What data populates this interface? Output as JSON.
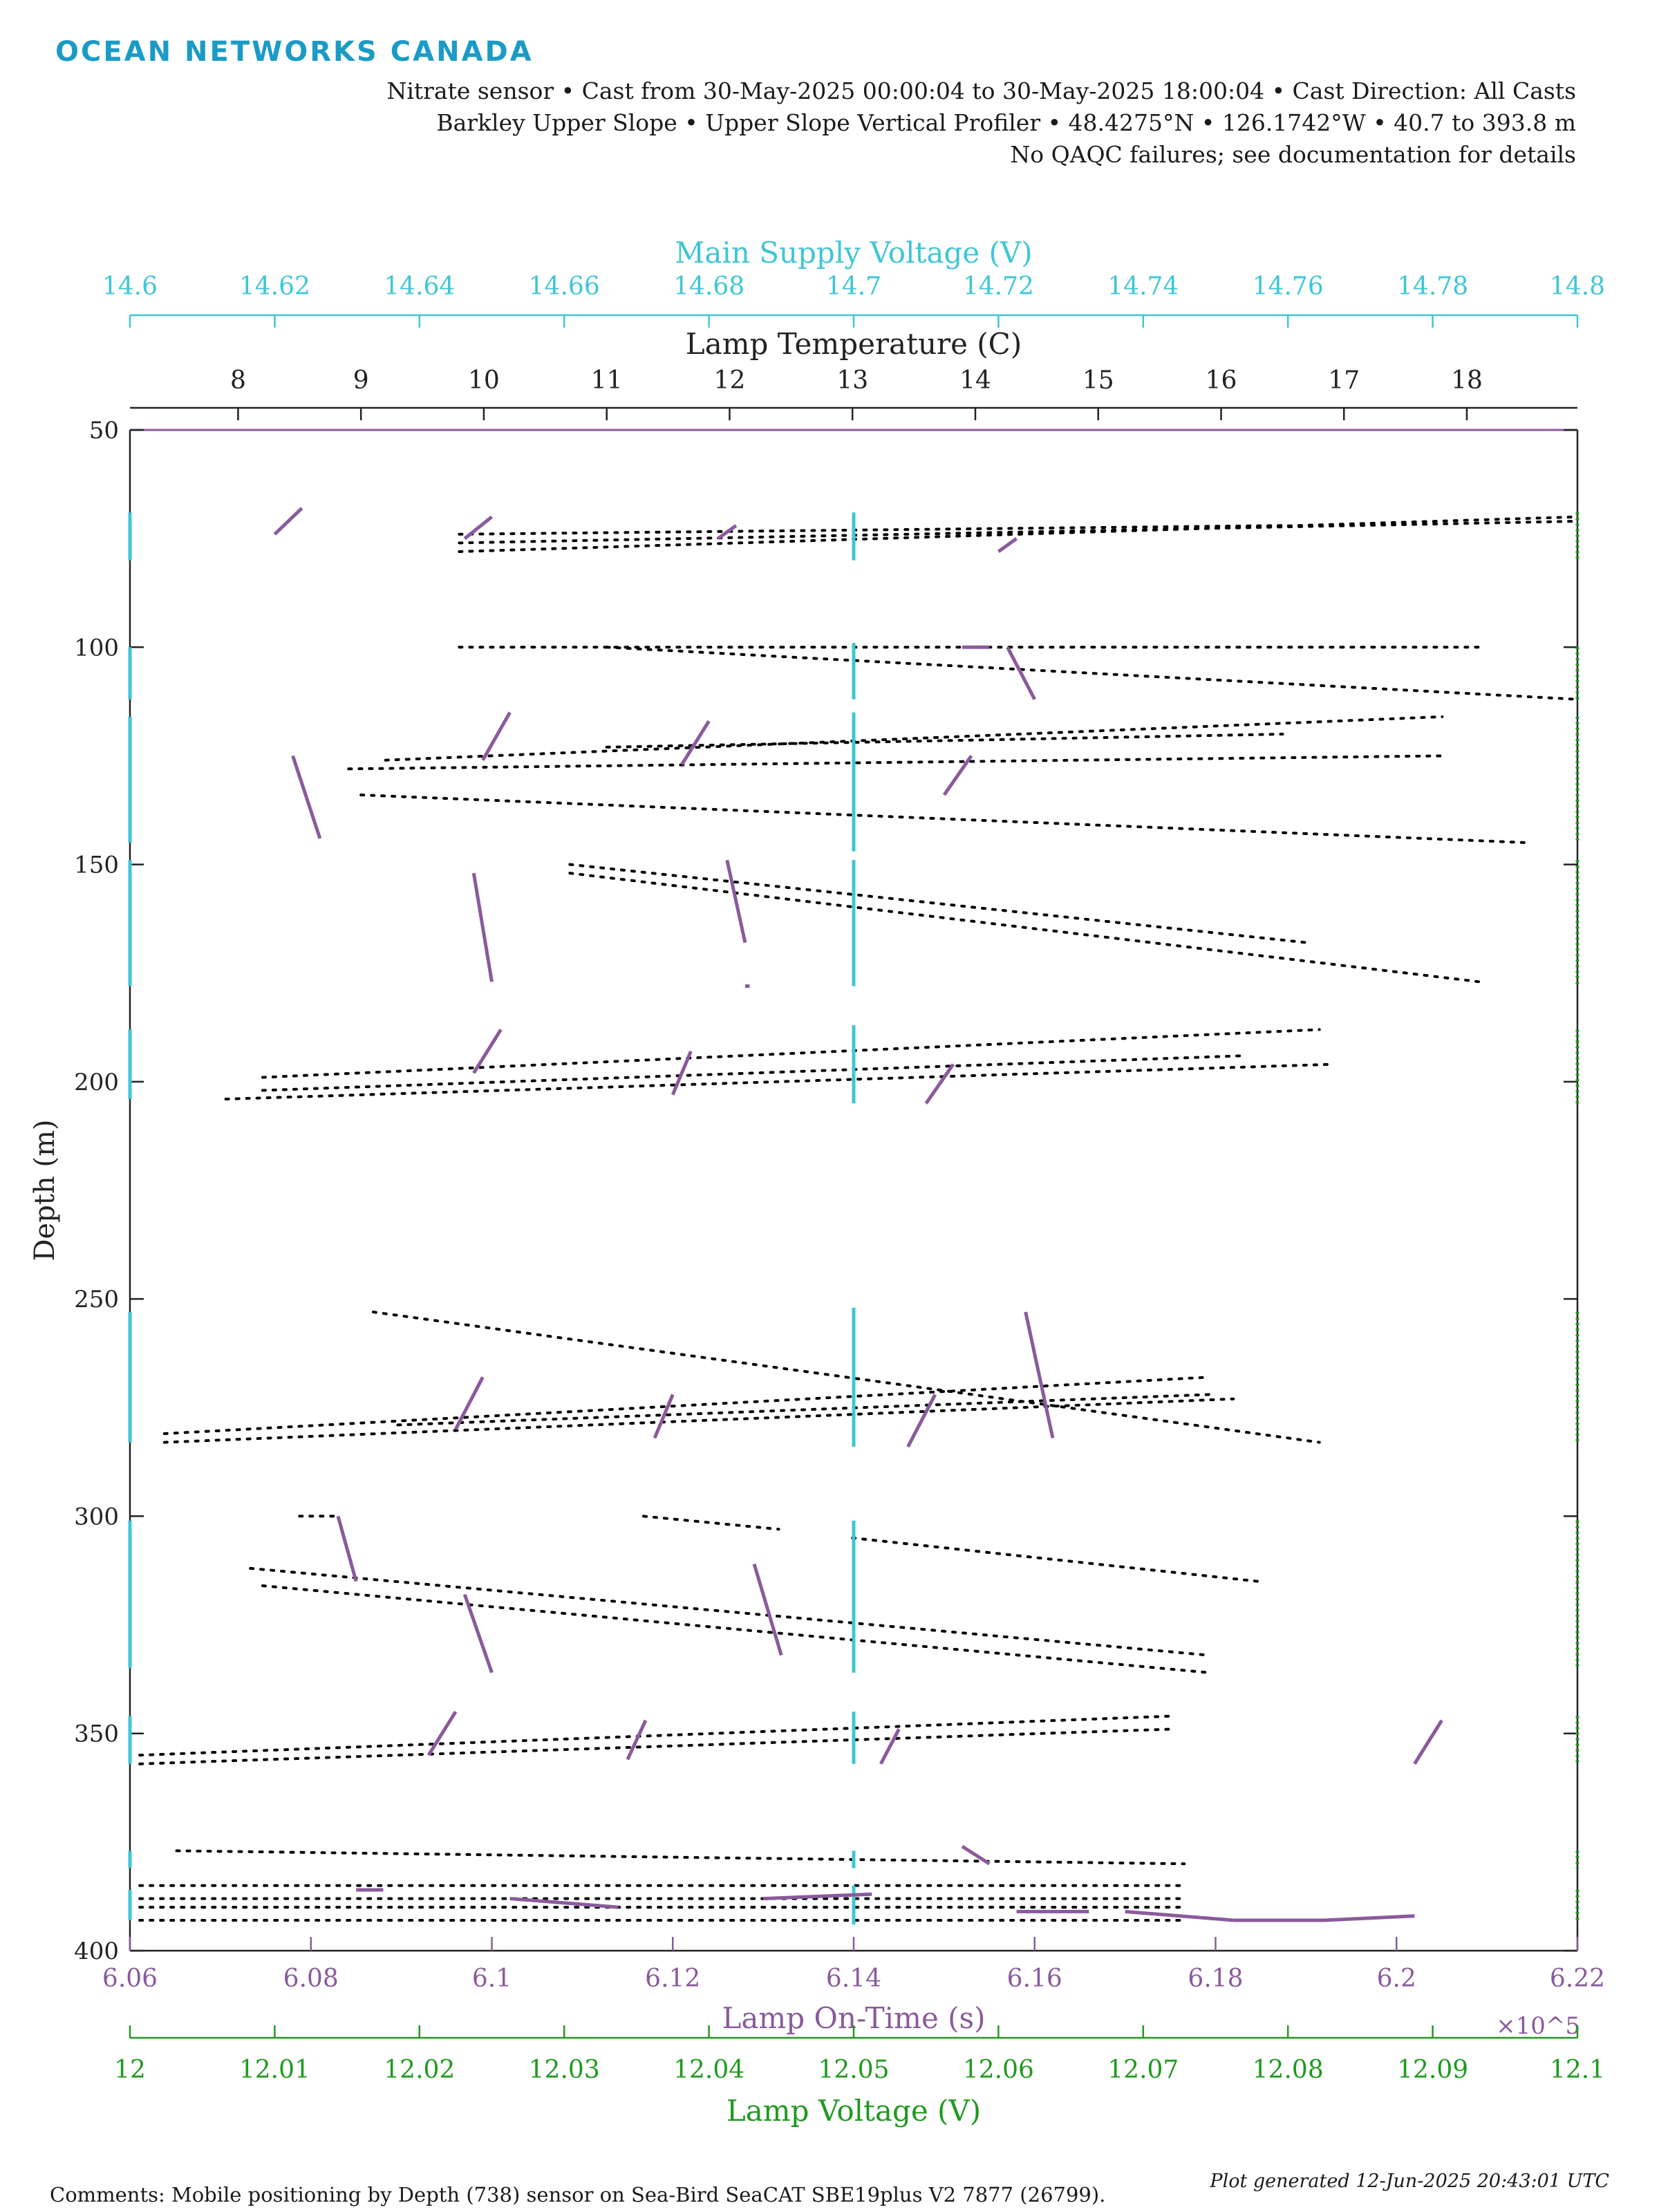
{
  "brand": "OCEAN NETWORKS CANADA",
  "header": {
    "line1": "Nitrate sensor • Cast from 30-May-2025 00:00:04 to 30-May-2025 18:00:04 • Cast Direction: All Casts",
    "line2": "Barkley Upper Slope • Upper Slope Vertical Profiler • 48.4275°N • 126.1742°W • 40.7 to 393.8 m",
    "line3": "No QAQC failures; see documentation for details"
  },
  "footer": {
    "comments": "Comments: Mobile positioning by Depth (738) sensor on Sea-Bird SeaCAT SBE19plus V2 7877 (26799).",
    "generated": "Plot generated 12-Jun-2025 20:43:01 UTC"
  },
  "colors": {
    "lamp_temperature": "#000000",
    "main_supply_voltage": "#3ec6d6",
    "lamp_on_time": "#8a5a9c",
    "lamp_voltage": "#1e9a1e"
  },
  "chart_data": {
    "type": "scatter",
    "y_axis": {
      "label": "Depth (m)",
      "range": [
        50,
        400
      ],
      "reversed": true,
      "ticks": [
        "50",
        "100",
        "150",
        "200",
        "250",
        "300",
        "350",
        "400"
      ]
    },
    "x_axes": [
      {
        "key": "voltage",
        "label": "Main Supply Voltage (V)",
        "position": "top",
        "range": [
          14.6,
          14.8
        ],
        "ticks": [
          "14.6",
          "14.62",
          "14.64",
          "14.66",
          "14.68",
          "14.7",
          "14.72",
          "14.74",
          "14.76",
          "14.78",
          "14.8"
        ]
      },
      {
        "key": "temp",
        "label": "Lamp Temperature (C)",
        "position": "top",
        "range": [
          7.12,
          18.9
        ],
        "ticks": [
          "8",
          "9",
          "10",
          "11",
          "12",
          "13",
          "14",
          "15",
          "16",
          "17",
          "18"
        ]
      },
      {
        "key": "ontime",
        "label": "Lamp On-Time (s)",
        "position": "bottom",
        "range": [
          606000,
          622000
        ],
        "ticks": [
          "6.06",
          "6.08",
          "6.1",
          "6.12",
          "6.14",
          "6.16",
          "6.18",
          "6.2",
          "6.22"
        ],
        "exponent": "×10^5"
      },
      {
        "key": "lampv",
        "label": "Lamp Voltage (V)",
        "position": "bottom",
        "range": [
          12,
          12.1
        ],
        "ticks": [
          "12",
          "12.01",
          "12.02",
          "12.03",
          "12.04",
          "12.05",
          "12.06",
          "12.07",
          "12.08",
          "12.09",
          "12.1"
        ]
      }
    ],
    "grid": false,
    "series": [
      {
        "name": "Lamp Temperature (C)",
        "axis": "temp",
        "mark": "dotted-segments",
        "segments": [
          [
            [
              9.8,
              78
            ],
            [
              18.9,
              70
            ]
          ],
          [
            [
              9.8,
              76
            ],
            [
              18.9,
              71
            ]
          ],
          [
            [
              9.8,
              74
            ],
            [
              16.5,
              72
            ]
          ],
          [
            [
              9.8,
              100
            ],
            [
              18.1,
              100
            ]
          ],
          [
            [
              11,
              100
            ],
            [
              18.9,
              112
            ]
          ],
          [
            [
              9.2,
              126
            ],
            [
              17.8,
              116
            ]
          ],
          [
            [
              9,
              134
            ],
            [
              18.5,
              145
            ]
          ],
          [
            [
              8.9,
              128
            ],
            [
              17.8,
              125
            ]
          ],
          [
            [
              11,
              123
            ],
            [
              16.5,
              120
            ]
          ],
          [
            [
              10.7,
              150
            ],
            [
              16.7,
              168
            ]
          ],
          [
            [
              10.7,
              152
            ],
            [
              18.1,
              177
            ]
          ],
          [
            [
              8.2,
              199
            ],
            [
              16.8,
              188
            ]
          ],
          [
            [
              7.9,
              204
            ],
            [
              16.9,
              196
            ]
          ],
          [
            [
              8.2,
              202
            ],
            [
              16.2,
              194
            ]
          ],
          [
            [
              9.1,
              253
            ],
            [
              16.8,
              283
            ]
          ],
          [
            [
              7.4,
              281
            ],
            [
              15.9,
              268
            ]
          ],
          [
            [
              7.4,
              283
            ],
            [
              16.1,
              273
            ]
          ],
          [
            [
              9.3,
              279
            ],
            [
              15.9,
              272
            ]
          ],
          [
            [
              8.5,
              300
            ],
            [
              8.8,
              300
            ]
          ],
          [
            [
              11.3,
              300
            ],
            [
              12.4,
              303
            ]
          ],
          [
            [
              13,
              305
            ],
            [
              16.3,
              315
            ]
          ],
          [
            [
              8.1,
              312
            ],
            [
              15.9,
              332
            ]
          ],
          [
            [
              8.2,
              316
            ],
            [
              15.9,
              336
            ]
          ],
          [
            [
              7.2,
              355
            ],
            [
              15.6,
              346
            ]
          ],
          [
            [
              7.2,
              357
            ],
            [
              15.6,
              349
            ]
          ],
          [
            [
              7.5,
              377
            ],
            [
              15.7,
              380
            ]
          ],
          [
            [
              7.2,
              385
            ],
            [
              15.7,
              385
            ]
          ],
          [
            [
              7.2,
              388
            ],
            [
              15.7,
              388
            ]
          ],
          [
            [
              7.2,
              390
            ],
            [
              15.7,
              390
            ]
          ],
          [
            [
              7.2,
              393
            ],
            [
              15.7,
              393
            ]
          ]
        ]
      },
      {
        "name": "Main Supply Voltage (V)",
        "axis": "voltage",
        "mark": "segments",
        "segments": [
          [
            [
              14.7,
              69
            ],
            [
              14.7,
              80
            ]
          ],
          [
            [
              14.7,
              99
            ],
            [
              14.7,
              112
            ]
          ],
          [
            [
              14.7,
              115
            ],
            [
              14.7,
              147
            ]
          ],
          [
            [
              14.7,
              149
            ],
            [
              14.7,
              178
            ]
          ],
          [
            [
              14.7,
              187
            ],
            [
              14.7,
              205
            ]
          ],
          [
            [
              14.7,
              252
            ],
            [
              14.7,
              284
            ]
          ],
          [
            [
              14.7,
              301
            ],
            [
              14.7,
              336
            ]
          ],
          [
            [
              14.7,
              345
            ],
            [
              14.7,
              357
            ]
          ],
          [
            [
              14.7,
              377
            ],
            [
              14.7,
              381
            ]
          ],
          [
            [
              14.7,
              385
            ],
            [
              14.7,
              394
            ]
          ],
          [
            [
              14.6,
              69
            ],
            [
              14.6,
              80
            ]
          ],
          [
            [
              14.6,
              100
            ],
            [
              14.6,
              112
            ]
          ],
          [
            [
              14.6,
              116
            ],
            [
              14.6,
              145
            ]
          ],
          [
            [
              14.6,
              149
            ],
            [
              14.6,
              178
            ]
          ],
          [
            [
              14.6,
              188
            ],
            [
              14.6,
              204
            ]
          ],
          [
            [
              14.6,
              253
            ],
            [
              14.6,
              283
            ]
          ],
          [
            [
              14.6,
              301
            ],
            [
              14.6,
              335
            ]
          ],
          [
            [
              14.6,
              346
            ],
            [
              14.6,
              357
            ]
          ],
          [
            [
              14.6,
              377
            ],
            [
              14.6,
              381
            ]
          ],
          [
            [
              14.6,
              386
            ],
            [
              14.6,
              393
            ]
          ]
        ]
      },
      {
        "name": "Lamp On-Time (s)",
        "axis": "ontime",
        "mark": "segments",
        "segments": [
          [
            [
              607600,
              74
            ],
            [
              607900,
              68
            ]
          ],
          [
            [
              609700,
              75
            ],
            [
              610000,
              70
            ]
          ],
          [
            [
              612500,
              75
            ],
            [
              612700,
              72
            ]
          ],
          [
            [
              615600,
              78
            ],
            [
              615800,
              75
            ]
          ],
          [
            [
              615200,
              100
            ],
            [
              615500,
              100
            ]
          ],
          [
            [
              615700,
              100
            ],
            [
              616000,
              112
            ]
          ],
          [
            [
              607800,
              125
            ],
            [
              608100,
              144
            ]
          ],
          [
            [
              609900,
              126
            ],
            [
              610200,
              115
            ]
          ],
          [
            [
              612100,
              127
            ],
            [
              612400,
              117
            ]
          ],
          [
            [
              615000,
              134
            ],
            [
              615300,
              125
            ]
          ],
          [
            [
              609800,
              152
            ],
            [
              610000,
              177
            ]
          ],
          [
            [
              612600,
              149
            ],
            [
              612800,
              168
            ]
          ],
          [
            [
              612800,
              178
            ],
            [
              612850,
              178
            ]
          ],
          [
            [
              609800,
              198
            ],
            [
              610100,
              188
            ]
          ],
          [
            [
              612000,
              203
            ],
            [
              612200,
              193
            ]
          ],
          [
            [
              614800,
              205
            ],
            [
              615100,
              196
            ]
          ],
          [
            [
              609600,
              280
            ],
            [
              609900,
              268
            ]
          ],
          [
            [
              611800,
              282
            ],
            [
              612000,
              272
            ]
          ],
          [
            [
              614600,
              284
            ],
            [
              614900,
              272
            ]
          ],
          [
            [
              615900,
              253
            ],
            [
              616200,
              282
            ]
          ],
          [
            [
              608300,
              300
            ],
            [
              608500,
              315
            ]
          ],
          [
            [
              609700,
              318
            ],
            [
              610000,
              336
            ]
          ],
          [
            [
              612900,
              311
            ],
            [
              613200,
              332
            ]
          ],
          [
            [
              609300,
              355
            ],
            [
              609600,
              345
            ]
          ],
          [
            [
              611500,
              356
            ],
            [
              611700,
              347
            ]
          ],
          [
            [
              614300,
              357
            ],
            [
              614500,
              349
            ]
          ],
          [
            [
              620200,
              357
            ],
            [
              620500,
              347
            ]
          ],
          [
            [
              615200,
              376
            ],
            [
              615500,
              380
            ]
          ],
          [
            [
              608500,
              386
            ],
            [
              608800,
              386
            ]
          ],
          [
            [
              610200,
              388
            ],
            [
              611400,
              390
            ]
          ],
          [
            [
              613000,
              388
            ],
            [
              614200,
              387
            ]
          ],
          [
            [
              615800,
              391
            ],
            [
              616600,
              391
            ]
          ],
          [
            [
              617000,
              391
            ],
            [
              618200,
              393
            ]
          ],
          [
            [
              618200,
              393
            ],
            [
              619200,
              393
            ]
          ],
          [
            [
              619200,
              393
            ],
            [
              620200,
              392
            ]
          ]
        ]
      },
      {
        "name": "Lamp Voltage (V)",
        "axis": "lampv",
        "mark": "segments",
        "segments": [
          [
            [
              12.1,
              69
            ],
            [
              12.1,
              80
            ]
          ],
          [
            [
              12.1,
              100
            ],
            [
              12.1,
              112
            ]
          ],
          [
            [
              12.1,
              116
            ],
            [
              12.1,
              145
            ]
          ],
          [
            [
              12.1,
              149
            ],
            [
              12.1,
              178
            ]
          ],
          [
            [
              12.1,
              188
            ],
            [
              12.1,
              205
            ]
          ],
          [
            [
              12.1,
              253
            ],
            [
              12.1,
              283
            ]
          ],
          [
            [
              12.1,
              301
            ],
            [
              12.1,
              335
            ]
          ],
          [
            [
              12.1,
              346
            ],
            [
              12.1,
              357
            ]
          ],
          [
            [
              12.1,
              377
            ],
            [
              12.1,
              381
            ]
          ],
          [
            [
              12.1,
              386
            ],
            [
              12.1,
              393
            ]
          ]
        ]
      }
    ]
  }
}
